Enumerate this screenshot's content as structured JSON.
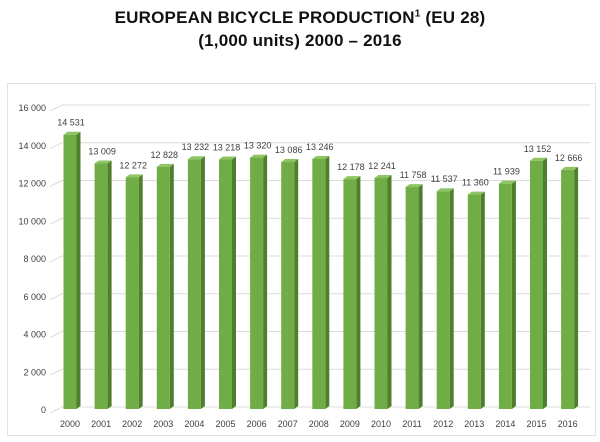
{
  "chart_data": {
    "type": "bar",
    "title": "EUROPEAN BICYCLE PRODUCTION",
    "title_superscript": "1",
    "title_suffix": "(EU 28)",
    "subtitle": "(1,000 units) 2000 – 2016",
    "categories": [
      "2000",
      "2001",
      "2002",
      "2003",
      "2004",
      "2005",
      "2006",
      "2007",
      "2008",
      "2009",
      "2010",
      "2011",
      "2012",
      "2013",
      "2014",
      "2015",
      "2016"
    ],
    "values": [
      14531,
      13009,
      12272,
      12828,
      13232,
      13218,
      13320,
      13086,
      13246,
      12178,
      12241,
      11758,
      11537,
      11360,
      11939,
      13152,
      12666
    ],
    "data_labels": [
      "14 531",
      "13 009",
      "12 272",
      "12 828",
      "13 232",
      "13 218",
      "13 320",
      "13 086",
      "13 246",
      "12 178",
      "12 241",
      "11 758",
      "11 537",
      "11 360",
      "11 939",
      "13 152",
      "12 666"
    ],
    "ylim": [
      0,
      16000
    ],
    "yticks": [
      0,
      2000,
      4000,
      6000,
      8000,
      10000,
      12000,
      14000,
      16000
    ],
    "ytick_labels": [
      "0",
      "2 000",
      "4 000",
      "6 000",
      "8 000",
      "10 000",
      "12 000",
      "14 000",
      "16 000"
    ],
    "grid": true,
    "legend": "none",
    "colors": {
      "bar_front": "#70ad47",
      "bar_side": "#4e7f2c",
      "bar_top": "#8fc463"
    }
  }
}
